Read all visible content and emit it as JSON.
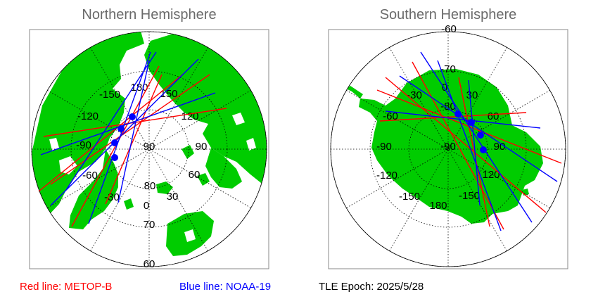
{
  "north": {
    "title": "Northern Hemisphere",
    "lon_labels": [
      "-150",
      "180",
      "150",
      "120",
      "-120",
      "-90",
      "90",
      "90",
      "-60",
      "60",
      "-30",
      "30",
      "0"
    ],
    "lat_labels": [
      "80",
      "70",
      "60"
    ]
  },
  "south": {
    "title": "Southern Hemisphere",
    "lat_labels": [
      "-60",
      "-70",
      "-80"
    ],
    "lon_labels": [
      "0",
      "-30",
      "30",
      "-60",
      "60",
      "-90",
      "-90",
      "90",
      "-120",
      "120",
      "-150",
      "180",
      "-150"
    ]
  },
  "legend": {
    "red": "Red line: METOP-B",
    "blue": "Blue line: NOAA-19",
    "epoch": "TLE Epoch: 2025/5/28"
  },
  "colors": {
    "land": "#00cc00",
    "ocean": "#ffffff",
    "metop_b": "#ff0000",
    "noaa_19": "#0000ff",
    "grid": "#000000",
    "title": "#6a6a6a"
  }
}
